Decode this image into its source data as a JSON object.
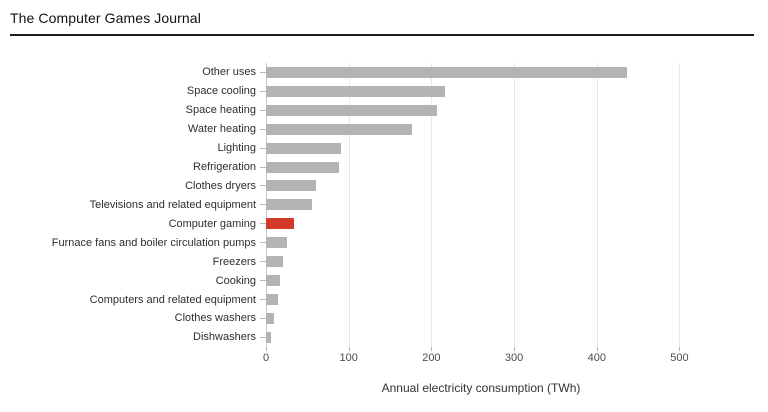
{
  "header": {
    "title": "The Computer Games Journal"
  },
  "chart_data": {
    "type": "bar",
    "orientation": "horizontal",
    "title": "",
    "xlabel": "Annual electricity consumption (TWh)",
    "ylabel": "",
    "xlim": [
      0,
      520
    ],
    "xticks": [
      0,
      100,
      200,
      300,
      400,
      500
    ],
    "grid": true,
    "legend": false,
    "categories": [
      "Other uses",
      "Space cooling",
      "Space heating",
      "Water heating",
      "Lighting",
      "Refrigeration",
      "Clothes dryers",
      "Televisions and related equipment",
      "Computer gaming",
      "Furnace fans and boiler circulation pumps",
      "Freezers",
      "Cooking",
      "Computers and related equipment",
      "Clothes washers",
      "Dishwashers"
    ],
    "values": [
      437,
      216,
      207,
      176,
      91,
      88,
      61,
      56,
      34,
      25,
      20,
      17,
      15,
      10,
      6
    ],
    "highlight_category": "Computer gaming",
    "highlight_index": 8,
    "bar_color": "#b3b3b3",
    "highlight_color": "#d43a2a"
  }
}
